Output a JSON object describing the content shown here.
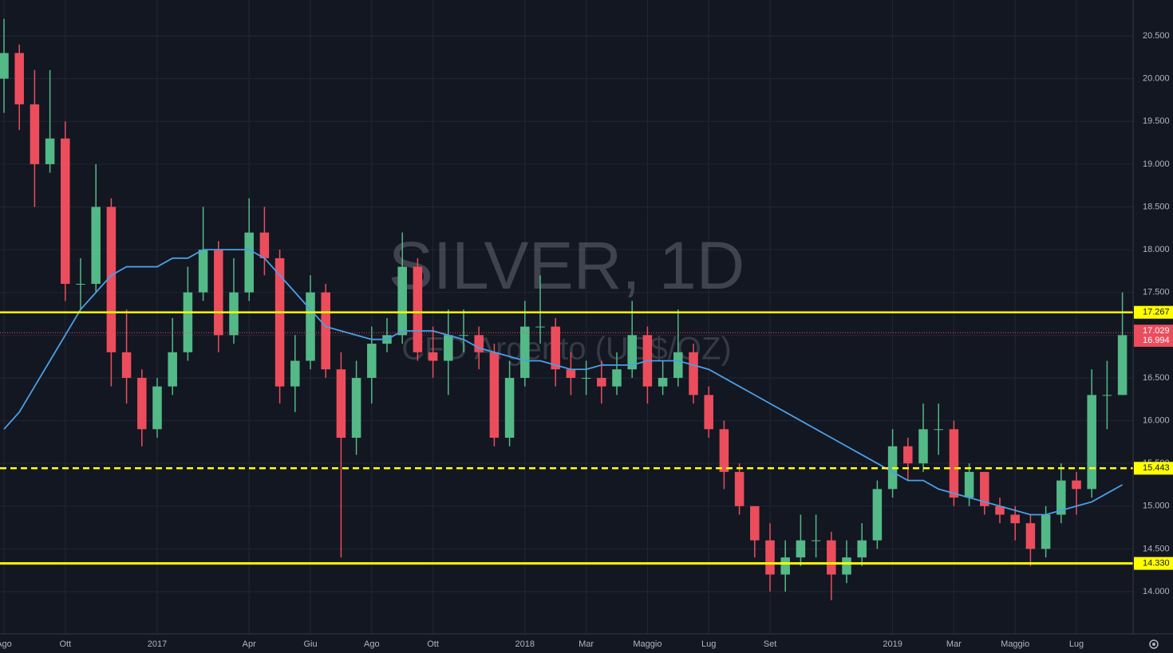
{
  "chart_data": {
    "type": "candlestick",
    "title": "SILVER, 1D",
    "subtitle": "CFD Argento (US$/OZ)",
    "categories": [
      "Ago",
      null,
      null,
      null,
      "Ott",
      null,
      null,
      null,
      null,
      null,
      "2017",
      null,
      null,
      null,
      null,
      null,
      "Apr",
      null,
      null,
      null,
      "Giu",
      null,
      null,
      null,
      "Ago",
      null,
      null,
      null,
      "Ott",
      null,
      null,
      null,
      null,
      null,
      "2018",
      null,
      null,
      null,
      "Mar",
      null,
      null,
      null,
      "Maggio",
      null,
      null,
      null,
      "Lug",
      null,
      null,
      null,
      "Set",
      null,
      null,
      null,
      null,
      null,
      null,
      null,
      "2019",
      null,
      null,
      null,
      "Mar",
      null,
      null,
      null,
      "Maggio",
      null,
      null,
      null,
      "Lug",
      null,
      null,
      null
    ],
    "open": [
      20.0,
      20.3,
      19.7,
      19.0,
      19.3,
      17.6,
      17.6,
      18.5,
      16.8,
      16.5,
      15.9,
      16.4,
      16.8,
      17.5,
      18.0,
      17.0,
      17.5,
      18.2,
      17.9,
      16.4,
      16.7,
      17.5,
      16.6,
      15.8,
      16.5,
      16.9,
      17.0,
      17.8,
      16.8,
      16.7,
      17.0,
      17.0,
      16.8,
      15.8,
      16.5,
      17.1,
      17.1,
      16.6,
      16.5,
      16.5,
      16.4,
      16.6,
      17.0,
      16.4,
      16.5,
      16.8,
      16.3,
      15.9,
      15.4,
      15.0,
      14.6,
      14.2,
      14.4,
      14.6,
      14.6,
      14.2,
      14.4,
      14.6,
      15.2,
      15.7,
      15.5,
      15.9,
      15.9,
      15.1,
      15.4,
      15.0,
      14.9,
      14.8,
      14.5,
      14.9,
      15.3,
      15.2,
      16.3,
      16.3
    ],
    "high": [
      20.7,
      20.4,
      20.1,
      20.1,
      19.5,
      17.9,
      19.0,
      18.6,
      17.3,
      16.6,
      16.5,
      17.2,
      17.8,
      18.5,
      18.1,
      17.9,
      18.6,
      18.5,
      18.0,
      17.0,
      17.7,
      17.6,
      16.8,
      16.7,
      17.1,
      17.2,
      18.2,
      17.9,
      17.1,
      17.3,
      17.3,
      17.1,
      16.9,
      16.7,
      17.4,
      17.7,
      17.2,
      16.8,
      16.7,
      16.7,
      16.8,
      17.4,
      17.1,
      16.7,
      17.3,
      16.9,
      16.4,
      16.0,
      15.5,
      15.0,
      14.8,
      14.6,
      14.9,
      14.9,
      14.7,
      14.6,
      14.8,
      15.3,
      15.9,
      15.8,
      16.2,
      16.2,
      16.0,
      15.5,
      15.4,
      15.1,
      15.0,
      14.9,
      15.0,
      15.5,
      15.4,
      16.6,
      16.7,
      17.5
    ],
    "low": [
      19.6,
      19.4,
      18.5,
      18.9,
      17.4,
      17.3,
      17.5,
      16.4,
      16.2,
      15.7,
      15.8,
      16.3,
      16.7,
      17.4,
      16.8,
      16.9,
      17.4,
      17.7,
      16.2,
      16.1,
      16.6,
      16.5,
      14.4,
      15.6,
      16.2,
      16.8,
      16.9,
      16.7,
      16.5,
      16.3,
      16.8,
      16.6,
      15.7,
      15.7,
      16.4,
      16.9,
      16.4,
      16.3,
      16.3,
      16.2,
      16.3,
      16.5,
      16.2,
      16.3,
      16.4,
      16.2,
      15.8,
      15.2,
      14.9,
      14.4,
      14.0,
      14.0,
      14.3,
      14.4,
      13.9,
      14.1,
      14.3,
      14.5,
      15.1,
      15.3,
      15.4,
      15.6,
      15.0,
      15.0,
      14.9,
      14.8,
      14.6,
      14.3,
      14.4,
      14.8,
      14.9,
      15.1,
      15.9,
      16.3
    ],
    "close": [
      20.3,
      19.7,
      19.0,
      19.3,
      17.6,
      17.6,
      18.5,
      16.8,
      16.5,
      15.9,
      16.4,
      16.8,
      17.5,
      18.0,
      17.0,
      17.5,
      18.2,
      17.9,
      16.4,
      16.7,
      17.5,
      16.6,
      15.8,
      16.5,
      16.9,
      17.0,
      17.8,
      16.8,
      16.7,
      17.0,
      17.0,
      16.8,
      15.8,
      16.5,
      17.1,
      17.1,
      16.6,
      16.5,
      16.5,
      16.4,
      16.6,
      17.0,
      16.4,
      16.5,
      16.8,
      16.3,
      15.9,
      15.4,
      15.0,
      14.6,
      14.2,
      14.4,
      14.6,
      14.6,
      14.2,
      14.4,
      14.6,
      15.2,
      15.7,
      15.5,
      15.9,
      15.9,
      15.1,
      15.4,
      15.0,
      14.9,
      14.8,
      14.5,
      14.9,
      15.3,
      15.2,
      16.3,
      16.3,
      17.0
    ],
    "up_color": "#53b987",
    "down_color": "#eb4d5c",
    "moving_average": {
      "color": "#4a9fe6",
      "values": [
        15.9,
        16.1,
        16.4,
        16.7,
        17.0,
        17.3,
        17.5,
        17.7,
        17.8,
        17.8,
        17.8,
        17.9,
        17.9,
        18.0,
        18.0,
        18.0,
        18.0,
        17.9,
        17.7,
        17.5,
        17.3,
        17.1,
        17.05,
        17.0,
        16.95,
        16.95,
        17.05,
        17.05,
        17.05,
        17.0,
        16.95,
        16.85,
        16.8,
        16.75,
        16.7,
        16.7,
        16.65,
        16.6,
        16.6,
        16.65,
        16.65,
        16.65,
        16.7,
        16.7,
        16.7,
        16.65,
        16.6,
        16.5,
        16.4,
        16.3,
        16.2,
        16.1,
        16.0,
        15.9,
        15.8,
        15.7,
        15.6,
        15.5,
        15.4,
        15.3,
        15.3,
        15.2,
        15.15,
        15.1,
        15.05,
        15.0,
        14.95,
        14.9,
        14.9,
        14.95,
        15.0,
        15.05,
        15.15,
        15.25
      ]
    },
    "price_lines": [
      {
        "value": 17.267,
        "label": "17.267",
        "style": "solid",
        "color": "#ffff00",
        "text_color": "#131722"
      },
      {
        "value": 17.029,
        "label": "17.029",
        "style": "dotted",
        "color": "#eb4d5c",
        "text_color": "#ffffff"
      },
      {
        "value": 16.994,
        "label": "16.994",
        "style": "none",
        "color": "#eb4d5c",
        "text_color": "#ffffff"
      },
      {
        "value": 15.443,
        "label": "15.443",
        "style": "dashed",
        "color": "#ffff00",
        "text_color": "#131722"
      },
      {
        "value": 14.33,
        "label": "14.330",
        "style": "thick",
        "color": "#ffff00",
        "text_color": "#131722"
      }
    ],
    "ylim": [
      13.506,
      20.92
    ],
    "yticks": [
      {
        "value": 14,
        "label": "14.000"
      },
      {
        "value": 14.5,
        "label": "14.500"
      },
      {
        "value": 15,
        "label": "15.000"
      },
      {
        "value": 15.5,
        "label": "15.500"
      },
      {
        "value": 16,
        "label": "16.000"
      },
      {
        "value": 16.5,
        "label": "16.500"
      },
      {
        "value": 17,
        "label": "17.000"
      },
      {
        "value": 17.5,
        "label": "17.500"
      },
      {
        "value": 18,
        "label": "18.000"
      },
      {
        "value": 18.5,
        "label": "18.500"
      },
      {
        "value": 19,
        "label": "19.000"
      },
      {
        "value": 19.5,
        "label": "19.500"
      },
      {
        "value": 20,
        "label": "20.000"
      },
      {
        "value": 20.5,
        "label": "20.500"
      }
    ],
    "grid": true
  }
}
